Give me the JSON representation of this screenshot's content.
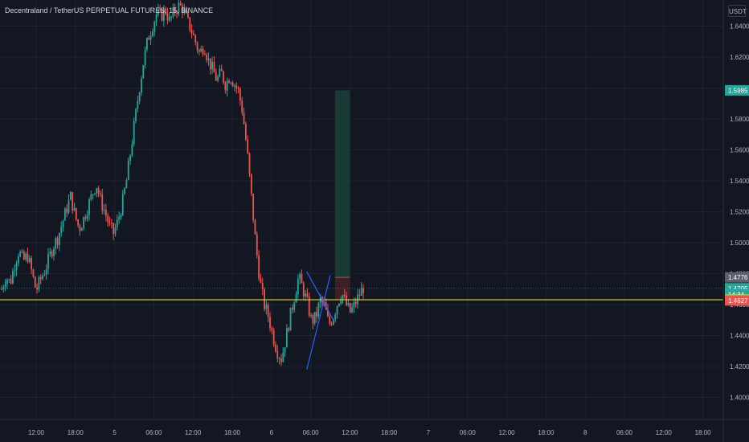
{
  "header": {
    "title": "Decentraland / TetherUS PERPETUAL FUTURES, 15, BINANCE",
    "currency": "USDT"
  },
  "colors": {
    "background": "#131722",
    "grid": "#1e222d",
    "up": "#26a69a",
    "down": "#ef5350",
    "trendline": "#2962ff",
    "entry_line": "#f5e625",
    "target_zone": "#1a3a36",
    "stop_zone": "#3d1f24"
  },
  "chart_data": {
    "type": "candlestick",
    "y_ticks": [
      "1.6400",
      "1.6200",
      "1.6000",
      "1.5800",
      "1.5600",
      "1.5400",
      "1.5200",
      "1.5000",
      "1.4800",
      "1.4600",
      "1.4400",
      "1.4200",
      "1.4000"
    ],
    "ylim": [
      1.387,
      1.655
    ],
    "x_ticks": [
      "12:00",
      "18:00",
      "5",
      "06:00",
      "12:00",
      "18:00",
      "6",
      "06:00",
      "12:00",
      "18:00",
      "7",
      "06:00",
      "12:00",
      "18:00",
      "8",
      "06:00",
      "12:00",
      "18:00"
    ],
    "close_path": [
      1.47,
      1.478,
      1.474,
      1.486,
      1.495,
      1.488,
      1.492,
      1.481,
      1.469,
      1.476,
      1.482,
      1.49,
      1.498,
      1.503,
      1.512,
      1.521,
      1.53,
      1.518,
      1.509,
      1.515,
      1.523,
      1.531,
      1.538,
      1.527,
      1.52,
      1.511,
      1.506,
      1.514,
      1.525,
      1.54,
      1.56,
      1.58,
      1.6,
      1.618,
      1.632,
      1.64,
      1.648,
      1.646,
      1.651,
      1.643,
      1.649,
      1.653,
      1.652,
      1.644,
      1.638,
      1.63,
      1.622,
      1.628,
      1.618,
      1.612,
      1.605,
      1.61,
      1.602,
      1.608,
      1.603,
      1.598,
      1.584,
      1.56,
      1.53,
      1.5,
      1.475,
      1.46,
      1.452,
      1.44,
      1.43,
      1.425,
      1.438,
      1.452,
      1.465,
      1.478,
      1.47,
      1.461,
      1.449,
      1.452,
      1.463,
      1.459,
      1.447,
      1.452,
      1.461,
      1.468,
      1.46,
      1.455,
      1.46,
      1.466,
      1.471
    ],
    "price_labels": [
      {
        "text": "1.5985",
        "value": 1.5985,
        "color": "#26a69a"
      },
      {
        "text": "1.4776",
        "value": 1.4776,
        "color": "#5d606b"
      },
      {
        "text": "1.4705",
        "value": 1.4705,
        "color": "#26a69a"
      },
      {
        "text": "14:34",
        "value": 1.4665,
        "color": "#26a69a"
      },
      {
        "text": "1.4631",
        "value": 1.4631,
        "color": "#f5e625"
      },
      {
        "text": "1.4627",
        "value": 1.4627,
        "color": "#ef5350"
      }
    ],
    "entry_price": 1.4631,
    "target_price": 1.5985,
    "stop_price": 1.4776,
    "current_price": 1.4705,
    "triangle": {
      "upper": [
        [
          6.9,
          1.4812
        ],
        [
          7.6,
          1.449
        ]
      ],
      "lower": [
        [
          6.9,
          1.418
        ],
        [
          7.5,
          1.479
        ]
      ]
    },
    "position_span": [
      7.62,
      8.0
    ],
    "grid": true
  }
}
